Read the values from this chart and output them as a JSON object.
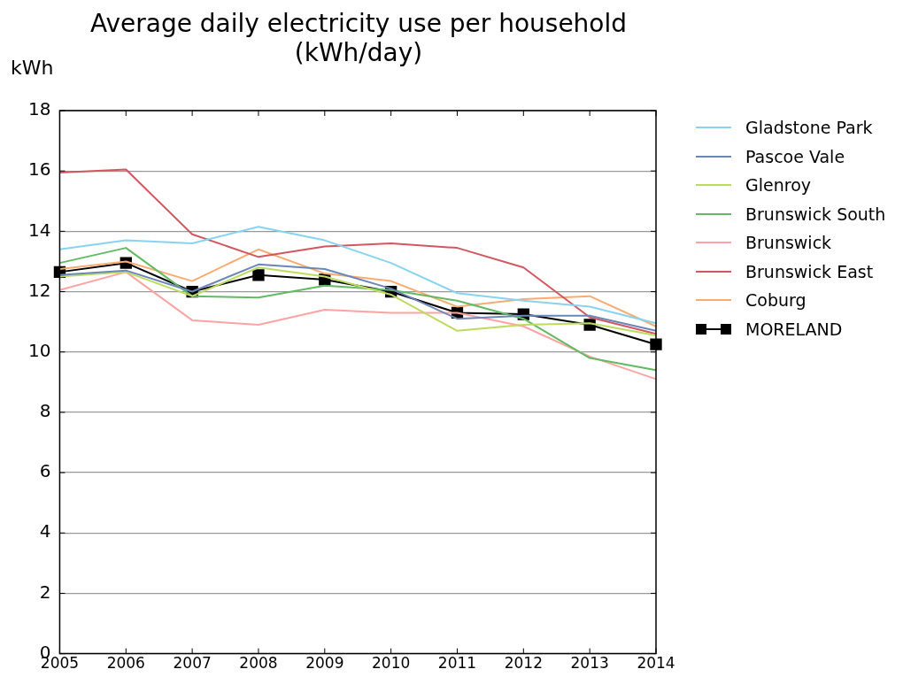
{
  "chart_data": {
    "type": "line",
    "title": "Average daily electricity use per household (kWh/day)",
    "ylabel": "kWh",
    "x": [
      2005,
      2006,
      2007,
      2008,
      2009,
      2010,
      2011,
      2012,
      2013,
      2014
    ],
    "series": [
      {
        "name": "Gladstone Park",
        "color": "#87d3f0",
        "values": [
          13.4,
          13.7,
          13.6,
          14.15,
          13.7,
          12.95,
          11.95,
          11.7,
          11.5,
          10.95
        ]
      },
      {
        "name": "Pascoe Vale",
        "color": "#6b86b8",
        "values": [
          12.55,
          12.7,
          12.0,
          12.9,
          12.75,
          12.1,
          11.1,
          11.2,
          11.2,
          10.7
        ]
      },
      {
        "name": "Glenroy",
        "color": "#bcdc5c",
        "values": [
          12.5,
          12.65,
          11.85,
          12.8,
          12.5,
          11.9,
          10.7,
          10.9,
          10.95,
          10.55
        ]
      },
      {
        "name": "Brunswick South",
        "color": "#62bb62",
        "values": [
          12.95,
          13.45,
          11.85,
          11.8,
          12.2,
          12.05,
          11.7,
          11.1,
          9.8,
          9.4
        ]
      },
      {
        "name": "Brunswick",
        "color": "#ffa3a3",
        "values": [
          12.05,
          12.65,
          11.05,
          10.9,
          11.4,
          11.3,
          11.3,
          10.85,
          9.85,
          9.1
        ]
      },
      {
        "name": "Brunswick East",
        "color": "#d3575f",
        "values": [
          15.95,
          16.05,
          13.9,
          13.15,
          13.5,
          13.6,
          13.45,
          12.8,
          11.15,
          10.6
        ]
      },
      {
        "name": "Coburg",
        "color": "#f9ab70",
        "values": [
          12.75,
          13.0,
          12.35,
          13.4,
          12.6,
          12.35,
          11.5,
          11.75,
          11.85,
          10.85
        ]
      },
      {
        "name": "MORELAND",
        "color": "#000000",
        "marker": "square",
        "values": [
          12.65,
          12.95,
          12.0,
          12.55,
          12.4,
          12.0,
          11.3,
          11.25,
          10.9,
          10.25
        ]
      }
    ],
    "xlim": [
      2005,
      2014
    ],
    "xticks": [
      2005,
      2006,
      2007,
      2008,
      2009,
      2010,
      2011,
      2012,
      2013,
      2014
    ],
    "ylim": [
      0,
      18
    ],
    "yticks": [
      0,
      2,
      4,
      6,
      8,
      10,
      12,
      14,
      16,
      18
    ],
    "grid": "y",
    "legend": "right",
    "line_style": "solid"
  }
}
